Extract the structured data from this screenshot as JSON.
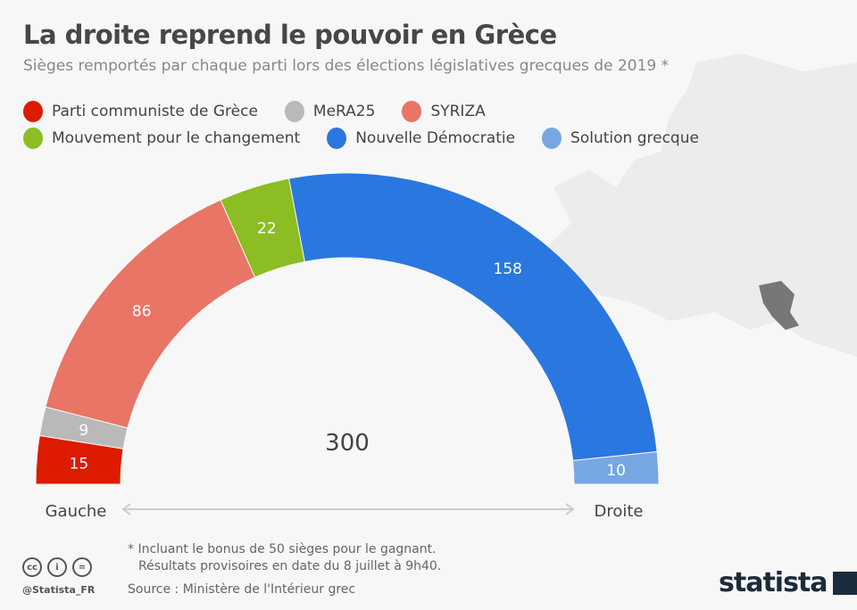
{
  "header": {
    "title": "La droite reprend le pouvoir en Grèce",
    "subtitle": "Sièges remportés par chaque parti lors des élections législatives grecques de 2019 *"
  },
  "chart_data": {
    "type": "pie",
    "variant": "semicircle-donut",
    "categories": [
      "Parti communiste de Grèce",
      "MeRA25",
      "SYRIZA",
      "Mouvement pour le changement",
      "Nouvelle Démocratie",
      "Solution grecque"
    ],
    "values": [
      15,
      9,
      86,
      22,
      158,
      10
    ],
    "colors": [
      "#dc1b00",
      "#b9b9b9",
      "#e87565",
      "#8cbd22",
      "#2a77df",
      "#77a7e3"
    ],
    "total_label": "300",
    "left_label": "Gauche",
    "right_label": "Droite",
    "legend_placement": "top-left"
  },
  "footer": {
    "note_line1": "* Incluant le bonus de 50 sièges pour le gagnant.",
    "note_line2": "Résultats provisoires en date du 8 juillet à 9h40.",
    "source": "Source : Ministère de l'Intérieur grec",
    "handle": "@Statista_FR",
    "logo": "statista",
    "cc_icons": [
      "cc-icon",
      "by-icon",
      "nd-icon"
    ]
  }
}
